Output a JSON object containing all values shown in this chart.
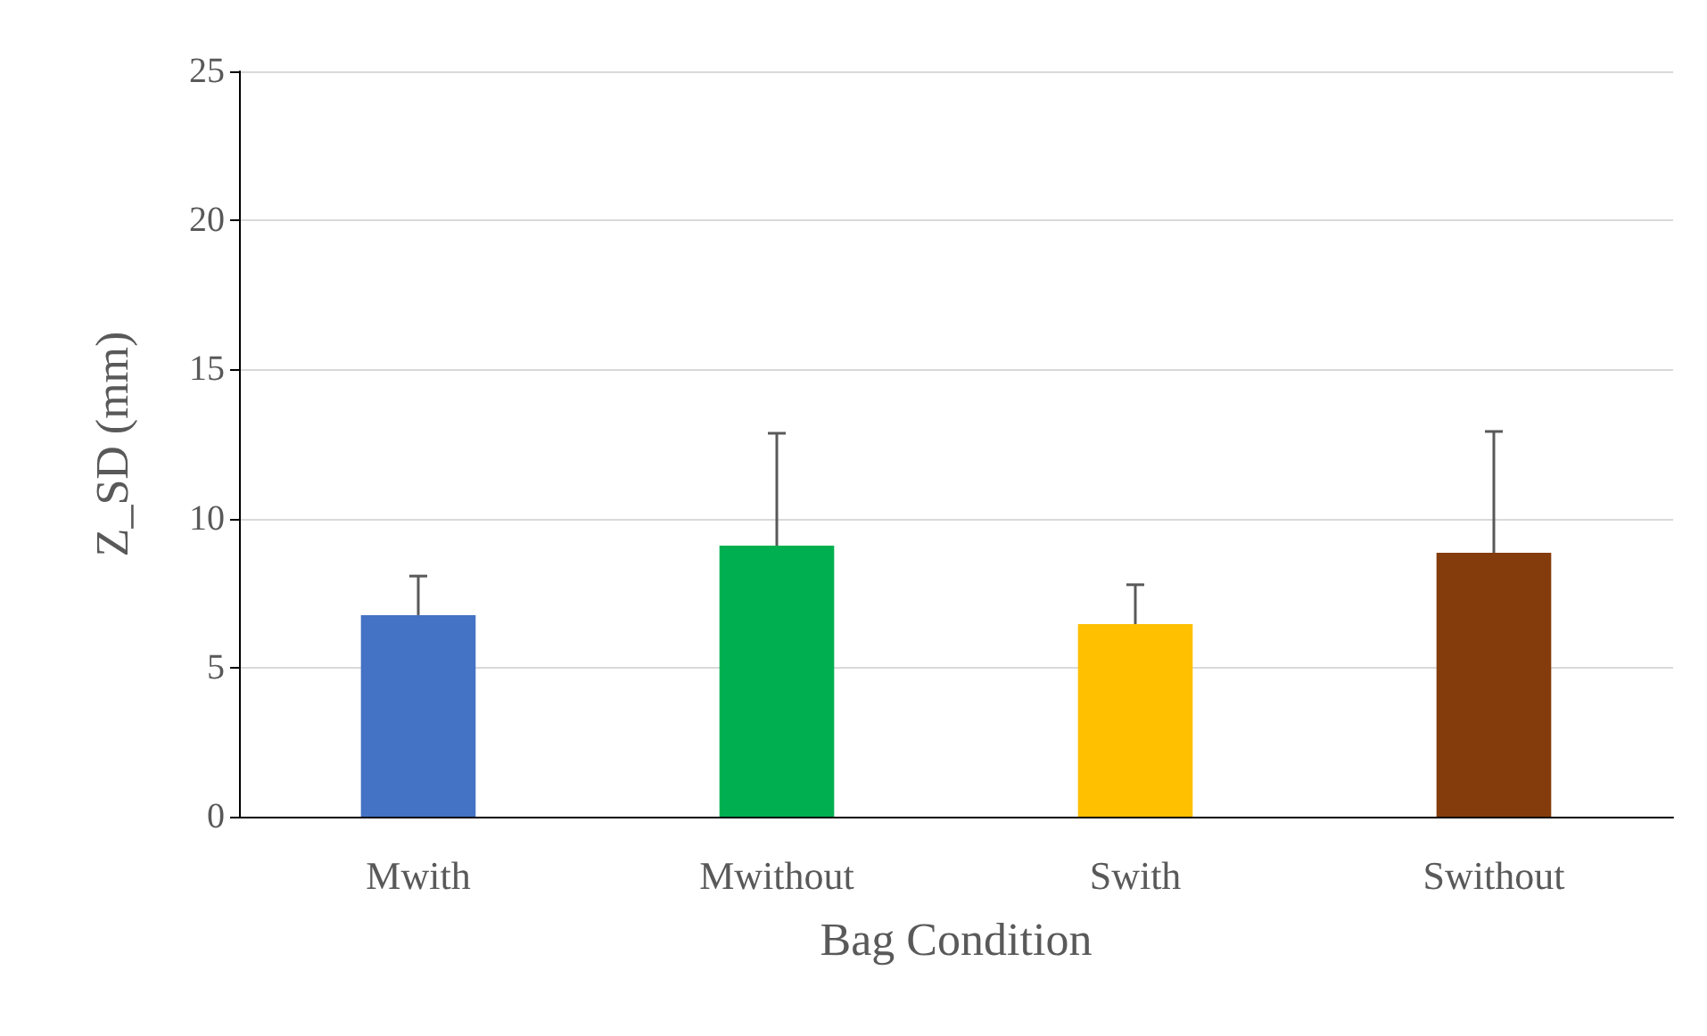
{
  "chart_data": {
    "type": "bar",
    "xlabel": "Bag Condition",
    "ylabel": "Z_SD (mm)",
    "categories": [
      "Mwith",
      "Mwithout",
      "Swith",
      "Swithout"
    ],
    "values": [
      6.76,
      9.09,
      6.46,
      8.85
    ],
    "colors": [
      "#4472c4",
      "#00b050",
      "#ffc000",
      "#843c0c"
    ],
    "errors": [
      [
        6.76,
        8.07
      ],
      [
        9.09,
        12.86
      ],
      [
        6.46,
        7.78
      ],
      [
        8.85,
        12.92
      ]
    ],
    "ylim": [
      0,
      25
    ],
    "yticks": [
      0,
      5,
      10,
      15,
      20,
      25
    ],
    "grid": "y"
  }
}
